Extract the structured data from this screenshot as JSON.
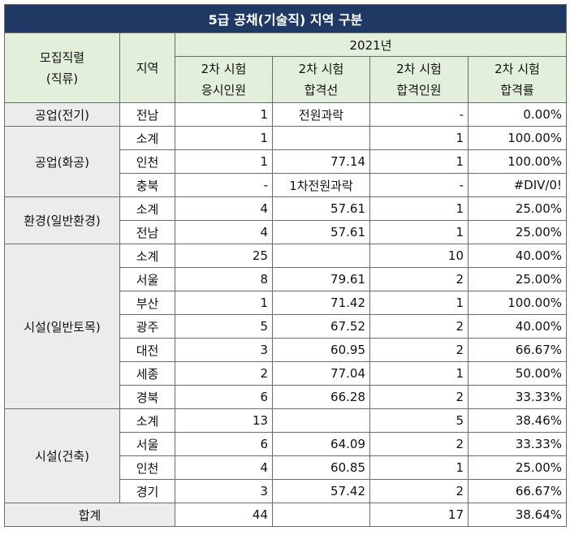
{
  "title": "5급 공채(기술직) 지역 구분",
  "header": {
    "col_job_line1": "모집직렬",
    "col_job_line2": "(직류)",
    "col_region": "지역",
    "year": "2021년",
    "c1_line1": "2차 시험",
    "c1_line2": "응시인원",
    "c2_line1": "2차 시험",
    "c2_line2": "합격선",
    "c3_line1": "2차 시험",
    "c3_line2": "합격인원",
    "c4_line1": "2차 시험",
    "c4_line2": "합격률"
  },
  "groups": [
    {
      "name": "공업(전기)",
      "rows": [
        {
          "region": "전남",
          "applicants": "1",
          "cutoff": "전원과락",
          "passed": "-",
          "rate": "0.00%"
        }
      ]
    },
    {
      "name": "공업(화공)",
      "rows": [
        {
          "region": "소계",
          "applicants": "1",
          "cutoff": "",
          "passed": "1",
          "rate": "100.00%"
        },
        {
          "region": "인천",
          "applicants": "1",
          "cutoff": "77.14",
          "passed": "1",
          "rate": "100.00%"
        },
        {
          "region": "충북",
          "applicants": "-",
          "cutoff": "1차전원과락",
          "passed": "-",
          "rate": "#DIV/0!"
        }
      ]
    },
    {
      "name": "환경(일반환경)",
      "rows": [
        {
          "region": "소계",
          "applicants": "4",
          "cutoff": "57.61",
          "passed": "1",
          "rate": "25.00%"
        },
        {
          "region": "전남",
          "applicants": "4",
          "cutoff": "57.61",
          "passed": "1",
          "rate": "25.00%"
        }
      ]
    },
    {
      "name": "시설(일반토목)",
      "rows": [
        {
          "region": "소계",
          "applicants": "25",
          "cutoff": "",
          "passed": "10",
          "rate": "40.00%"
        },
        {
          "region": "서울",
          "applicants": "8",
          "cutoff": "79.61",
          "passed": "2",
          "rate": "25.00%"
        },
        {
          "region": "부산",
          "applicants": "1",
          "cutoff": "71.42",
          "passed": "1",
          "rate": "100.00%"
        },
        {
          "region": "광주",
          "applicants": "5",
          "cutoff": "67.52",
          "passed": "2",
          "rate": "40.00%"
        },
        {
          "region": "대전",
          "applicants": "3",
          "cutoff": "60.95",
          "passed": "2",
          "rate": "66.67%"
        },
        {
          "region": "세종",
          "applicants": "2",
          "cutoff": "77.04",
          "passed": "1",
          "rate": "50.00%"
        },
        {
          "region": "경북",
          "applicants": "6",
          "cutoff": "66.28",
          "passed": "2",
          "rate": "33.33%"
        }
      ]
    },
    {
      "name": "시설(건축)",
      "rows": [
        {
          "region": "소계",
          "applicants": "13",
          "cutoff": "",
          "passed": "5",
          "rate": "38.46%"
        },
        {
          "region": "서울",
          "applicants": "6",
          "cutoff": "64.09",
          "passed": "2",
          "rate": "33.33%"
        },
        {
          "region": "인천",
          "applicants": "4",
          "cutoff": "60.85",
          "passed": "1",
          "rate": "25.00%"
        },
        {
          "region": "경기",
          "applicants": "3",
          "cutoff": "57.42",
          "passed": "2",
          "rate": "66.67%"
        }
      ]
    }
  ],
  "total": {
    "label": "합계",
    "applicants": "44",
    "cutoff": "",
    "passed": "17",
    "rate": "38.64%"
  },
  "colors": {
    "title_bg": "#1f3864",
    "header_bg": "#e2efda",
    "group_bg": "#ececec"
  }
}
